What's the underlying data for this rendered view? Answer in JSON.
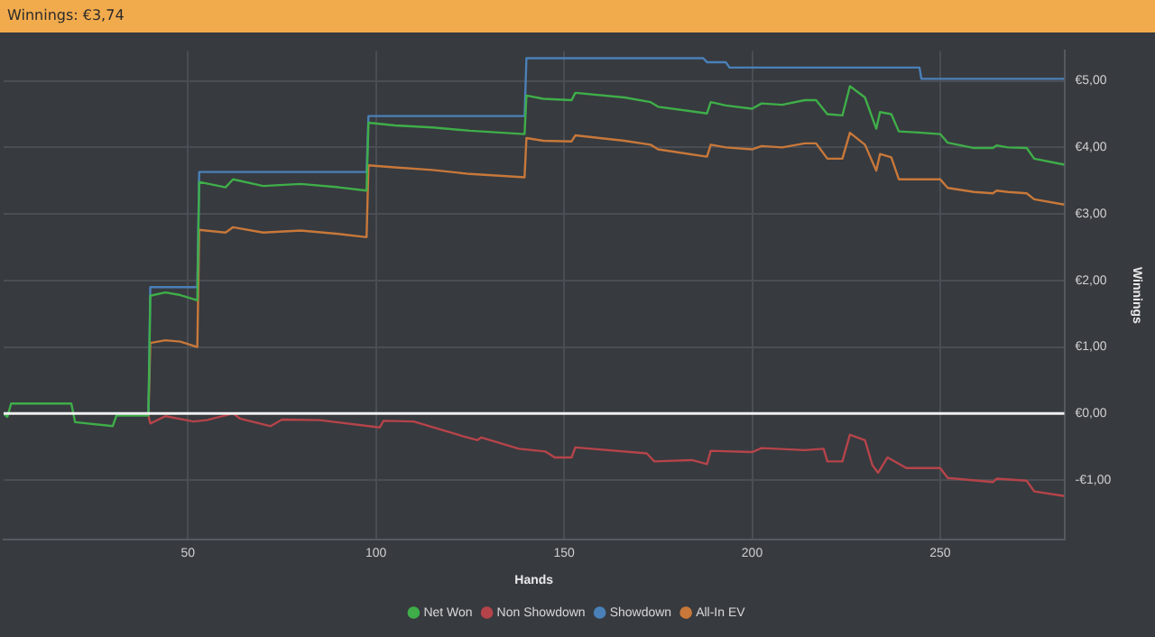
{
  "chart_data": {
    "type": "line",
    "title": "Winnings: €3,74",
    "xlabel": "Hands",
    "ylabel": "Winnings",
    "xlim": [
      1,
      283
    ],
    "xticks": [
      50,
      100,
      150,
      200,
      250
    ],
    "ylim": [
      -1.9,
      5.45
    ],
    "yticks": [
      {
        "value": -1,
        "label": "-€1,00"
      },
      {
        "value": 0,
        "label": "€0,00"
      },
      {
        "value": 1,
        "label": "€1,00"
      },
      {
        "value": 2,
        "label": "€2,00"
      },
      {
        "value": 3,
        "label": "€3,00"
      },
      {
        "value": 4,
        "label": "€4,00"
      },
      {
        "value": 5,
        "label": "€5,00"
      }
    ],
    "grid": true,
    "legend": "bottom",
    "marker": "none",
    "line_style": "solid",
    "ref_lines": [
      {
        "axis": "y",
        "value": 0,
        "color": "#f0f0f0"
      }
    ],
    "series": [
      {
        "name": "Net Won",
        "color": "#3fae49",
        "x": [
          1,
          2,
          3,
          19,
          20,
          30,
          31,
          39.5,
          40,
          44,
          48,
          52.5,
          53,
          60,
          62,
          70,
          80,
          90,
          97.5,
          98,
          105,
          115,
          125,
          139.5,
          140,
          144.5,
          152,
          153,
          166,
          173,
          175,
          188,
          189,
          193,
          200,
          202.5,
          208,
          214,
          217,
          220,
          224,
          226,
          230,
          233,
          234,
          237,
          239,
          245,
          250,
          252,
          259,
          264,
          265,
          268,
          273,
          275,
          283
        ],
        "values": [
          0,
          -0.05,
          0.15,
          0.15,
          -0.13,
          -0.19,
          -0.03,
          -0.03,
          1.77,
          1.82,
          1.78,
          1.7,
          3.48,
          3.4,
          3.52,
          3.42,
          3.45,
          3.4,
          3.35,
          4.37,
          4.33,
          4.3,
          4.25,
          4.2,
          4.78,
          4.73,
          4.71,
          4.82,
          4.75,
          4.68,
          4.61,
          4.51,
          4.68,
          4.63,
          4.58,
          4.66,
          4.64,
          4.71,
          4.71,
          4.5,
          4.48,
          4.92,
          4.75,
          4.28,
          4.53,
          4.5,
          4.24,
          4.22,
          4.2,
          4.07,
          3.99,
          3.99,
          4.03,
          4.0,
          3.99,
          3.83,
          3.74
        ]
      },
      {
        "name": "Non Showdown",
        "color": "#b5444a",
        "x": [
          39.5,
          40,
          44,
          51.5,
          55,
          62,
          64,
          72,
          75,
          85,
          101,
          102,
          110,
          123,
          127,
          128,
          138,
          145,
          147.5,
          152,
          153,
          172,
          174,
          184,
          188,
          189,
          200,
          202.5,
          214,
          219,
          220,
          224,
          226,
          230,
          232,
          233.5,
          236,
          241,
          250,
          252,
          264,
          265,
          273,
          275,
          283
        ],
        "values": [
          -0.03,
          -0.15,
          -0.04,
          -0.12,
          -0.1,
          0.0,
          -0.08,
          -0.19,
          -0.09,
          -0.1,
          -0.21,
          -0.11,
          -0.12,
          -0.34,
          -0.4,
          -0.36,
          -0.53,
          -0.57,
          -0.66,
          -0.66,
          -0.51,
          -0.6,
          -0.72,
          -0.7,
          -0.76,
          -0.56,
          -0.58,
          -0.52,
          -0.55,
          -0.53,
          -0.72,
          -0.72,
          -0.32,
          -0.4,
          -0.78,
          -0.89,
          -0.66,
          -0.82,
          -0.82,
          -0.97,
          -1.03,
          -0.98,
          -1.01,
          -1.17,
          -1.24
        ]
      },
      {
        "name": "Showdown",
        "color": "#4a80b8",
        "x": [
          39.5,
          40,
          52.5,
          53,
          97.5,
          98,
          139.5,
          140,
          187,
          188,
          193,
          194,
          244.5,
          245,
          283
        ],
        "values": [
          -0.03,
          1.9,
          1.9,
          3.63,
          3.63,
          4.47,
          4.47,
          5.34,
          5.34,
          5.28,
          5.28,
          5.2,
          5.2,
          5.03,
          5.03
        ]
      },
      {
        "name": "All-In EV",
        "color": "#c8783a",
        "x": [
          39.5,
          40,
          44,
          48,
          52.5,
          53,
          60,
          62,
          70,
          80,
          90,
          97.5,
          98,
          105,
          115,
          125,
          139.5,
          140,
          144.5,
          152,
          153,
          166,
          173,
          175,
          188,
          189,
          193,
          200,
          202.5,
          208,
          214,
          217,
          220,
          224,
          226,
          230,
          233,
          234,
          237,
          239,
          245,
          250,
          252,
          259,
          264,
          265,
          268,
          273,
          275,
          283
        ],
        "values": [
          -0.03,
          1.06,
          1.1,
          1.08,
          1.0,
          2.76,
          2.72,
          2.8,
          2.72,
          2.75,
          2.7,
          2.65,
          3.73,
          3.7,
          3.66,
          3.6,
          3.55,
          4.14,
          4.1,
          4.09,
          4.18,
          4.1,
          4.04,
          3.97,
          3.86,
          4.04,
          4.0,
          3.97,
          4.02,
          4.0,
          4.06,
          4.06,
          3.83,
          3.83,
          4.22,
          4.04,
          3.65,
          3.9,
          3.85,
          3.52,
          3.52,
          3.52,
          3.39,
          3.33,
          3.31,
          3.35,
          3.33,
          3.31,
          3.22,
          3.14
        ]
      }
    ]
  }
}
